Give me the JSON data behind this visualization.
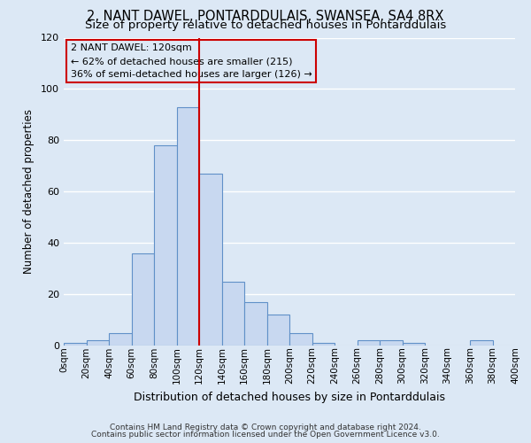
{
  "title": "2, NANT DAWEL, PONTARDDULAIS, SWANSEA, SA4 8RX",
  "subtitle": "Size of property relative to detached houses in Pontarddulais",
  "xlabel": "Distribution of detached houses by size in Pontarddulais",
  "ylabel": "Number of detached properties",
  "bin_edges": [
    0,
    20,
    40,
    60,
    80,
    100,
    120,
    140,
    160,
    180,
    200,
    220,
    240,
    260,
    280,
    300,
    320,
    340,
    360,
    380,
    400
  ],
  "bar_heights": [
    1,
    2,
    5,
    36,
    78,
    93,
    67,
    25,
    17,
    12,
    5,
    1,
    0,
    2,
    2,
    1,
    0,
    0,
    2,
    0
  ],
  "bar_color": "#c8d8f0",
  "bar_edgecolor": "#6090c8",
  "marker_value": 120,
  "marker_color": "#cc0000",
  "ylim": [
    0,
    120
  ],
  "yticks": [
    0,
    20,
    40,
    60,
    80,
    100,
    120
  ],
  "annotation_title": "2 NANT DAWEL: 120sqm",
  "annotation_line1": "← 62% of detached houses are smaller (215)",
  "annotation_line2": "36% of semi-detached houses are larger (126) →",
  "annotation_box_edgecolor": "#cc0000",
  "footer_line1": "Contains HM Land Registry data © Crown copyright and database right 2024.",
  "footer_line2": "Contains public sector information licensed under the Open Government Licence v3.0.",
  "background_color": "#dce8f5",
  "grid_color": "#ffffff",
  "title_fontsize": 10.5,
  "subtitle_fontsize": 9.5,
  "tick_label_fontsize": 7.5,
  "ylabel_fontsize": 8.5,
  "xlabel_fontsize": 9.0
}
